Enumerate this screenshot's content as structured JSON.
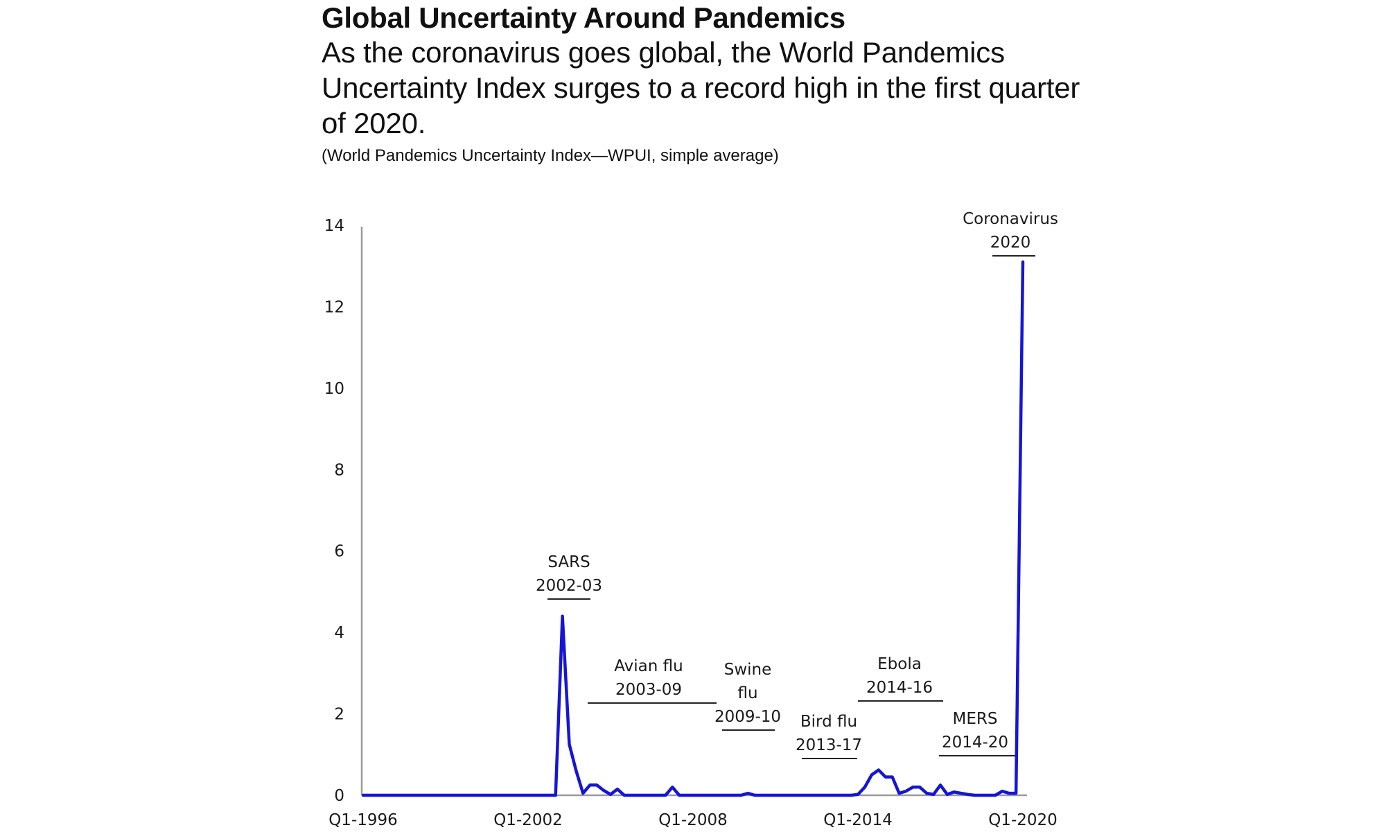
{
  "header": {
    "title": "Global Uncertainty Around Pandemics",
    "subtitle": "As the coronavirus goes global, the World Pandemics Uncertainty Index surges to a record high in the first quarter of 2020.",
    "note": "(World Pandemics Uncertainty Index—WPUI, simple average)"
  },
  "chart_data": {
    "type": "line",
    "title": "Global Uncertainty Around Pandemics",
    "ylabel": "",
    "xlabel": "",
    "ylim": [
      0,
      14
    ],
    "yticks": [
      0,
      2,
      4,
      6,
      8,
      10,
      12,
      14
    ],
    "xticks": [
      "Q1-1996",
      "Q1-2002",
      "Q1-2008",
      "Q1-2014",
      "Q1-2020"
    ],
    "grid": false,
    "line_color": "#1515d6",
    "series": [
      {
        "name": "",
        "x": [
          "Q1-1996",
          "Q2-1996",
          "Q3-1996",
          "Q4-1996",
          "Q1-1997",
          "Q2-1997",
          "Q3-1997",
          "Q4-1997",
          "Q1-1998",
          "Q2-1998",
          "Q3-1998",
          "Q4-1998",
          "Q1-1999",
          "Q2-1999",
          "Q3-1999",
          "Q4-1999",
          "Q1-2000",
          "Q2-2000",
          "Q3-2000",
          "Q4-2000",
          "Q1-2001",
          "Q2-2001",
          "Q3-2001",
          "Q4-2001",
          "Q1-2002",
          "Q2-2002",
          "Q3-2002",
          "Q4-2002",
          "Q1-2003",
          "Q2-2003",
          "Q3-2003",
          "Q4-2003",
          "Q1-2004",
          "Q2-2004",
          "Q3-2004",
          "Q4-2004",
          "Q1-2005",
          "Q2-2005",
          "Q3-2005",
          "Q4-2005",
          "Q1-2006",
          "Q2-2006",
          "Q3-2006",
          "Q4-2006",
          "Q1-2007",
          "Q2-2007",
          "Q3-2007",
          "Q4-2007",
          "Q1-2008",
          "Q2-2008",
          "Q3-2008",
          "Q4-2008",
          "Q1-2009",
          "Q2-2009",
          "Q3-2009",
          "Q4-2009",
          "Q1-2010",
          "Q2-2010",
          "Q3-2010",
          "Q4-2010",
          "Q1-2011",
          "Q2-2011",
          "Q3-2011",
          "Q4-2011",
          "Q1-2012",
          "Q2-2012",
          "Q3-2012",
          "Q4-2012",
          "Q1-2013",
          "Q2-2013",
          "Q3-2013",
          "Q4-2013",
          "Q1-2014",
          "Q2-2014",
          "Q3-2014",
          "Q4-2014",
          "Q1-2015",
          "Q2-2015",
          "Q3-2015",
          "Q4-2015",
          "Q1-2016",
          "Q2-2016",
          "Q3-2016",
          "Q4-2016",
          "Q1-2017",
          "Q2-2017",
          "Q3-2017",
          "Q4-2017",
          "Q1-2018",
          "Q2-2018",
          "Q3-2018",
          "Q4-2018",
          "Q1-2019",
          "Q2-2019",
          "Q3-2019",
          "Q4-2019",
          "Q1-2020"
        ],
        "values": [
          0,
          0,
          0,
          0,
          0,
          0,
          0,
          0,
          0,
          0,
          0,
          0,
          0,
          0,
          0,
          0,
          0,
          0,
          0,
          0,
          0,
          0,
          0,
          0,
          0,
          0,
          0,
          0,
          0,
          4.4,
          1.25,
          0.6,
          0.05,
          0.25,
          0.25,
          0.12,
          0.02,
          0.15,
          0,
          0,
          0,
          0,
          0,
          0,
          0,
          0.2,
          0,
          0,
          0,
          0,
          0,
          0,
          0,
          0,
          0,
          0,
          0.05,
          0,
          0,
          0,
          0,
          0,
          0,
          0,
          0,
          0,
          0,
          0,
          0,
          0,
          0,
          0,
          0.02,
          0.2,
          0.5,
          0.62,
          0.45,
          0.45,
          0.05,
          0.1,
          0.2,
          0.2,
          0.05,
          0.02,
          0.25,
          0.02,
          0.08,
          0.05,
          0.02,
          0,
          0,
          0,
          0,
          0.1,
          0.05,
          0.05,
          13.1
        ]
      }
    ],
    "annotations": [
      {
        "label": "SARS",
        "period": "2002-03"
      },
      {
        "label": "Avian flu",
        "period": "2003-09"
      },
      {
        "label": "Swine flu",
        "period": "2009-10"
      },
      {
        "label": "Bird flu",
        "period": "2013-17"
      },
      {
        "label": "Ebola",
        "period": "2014-16"
      },
      {
        "label": "MERS",
        "period": "2014-20"
      },
      {
        "label": "Coronavirus",
        "period": "2020"
      }
    ]
  }
}
